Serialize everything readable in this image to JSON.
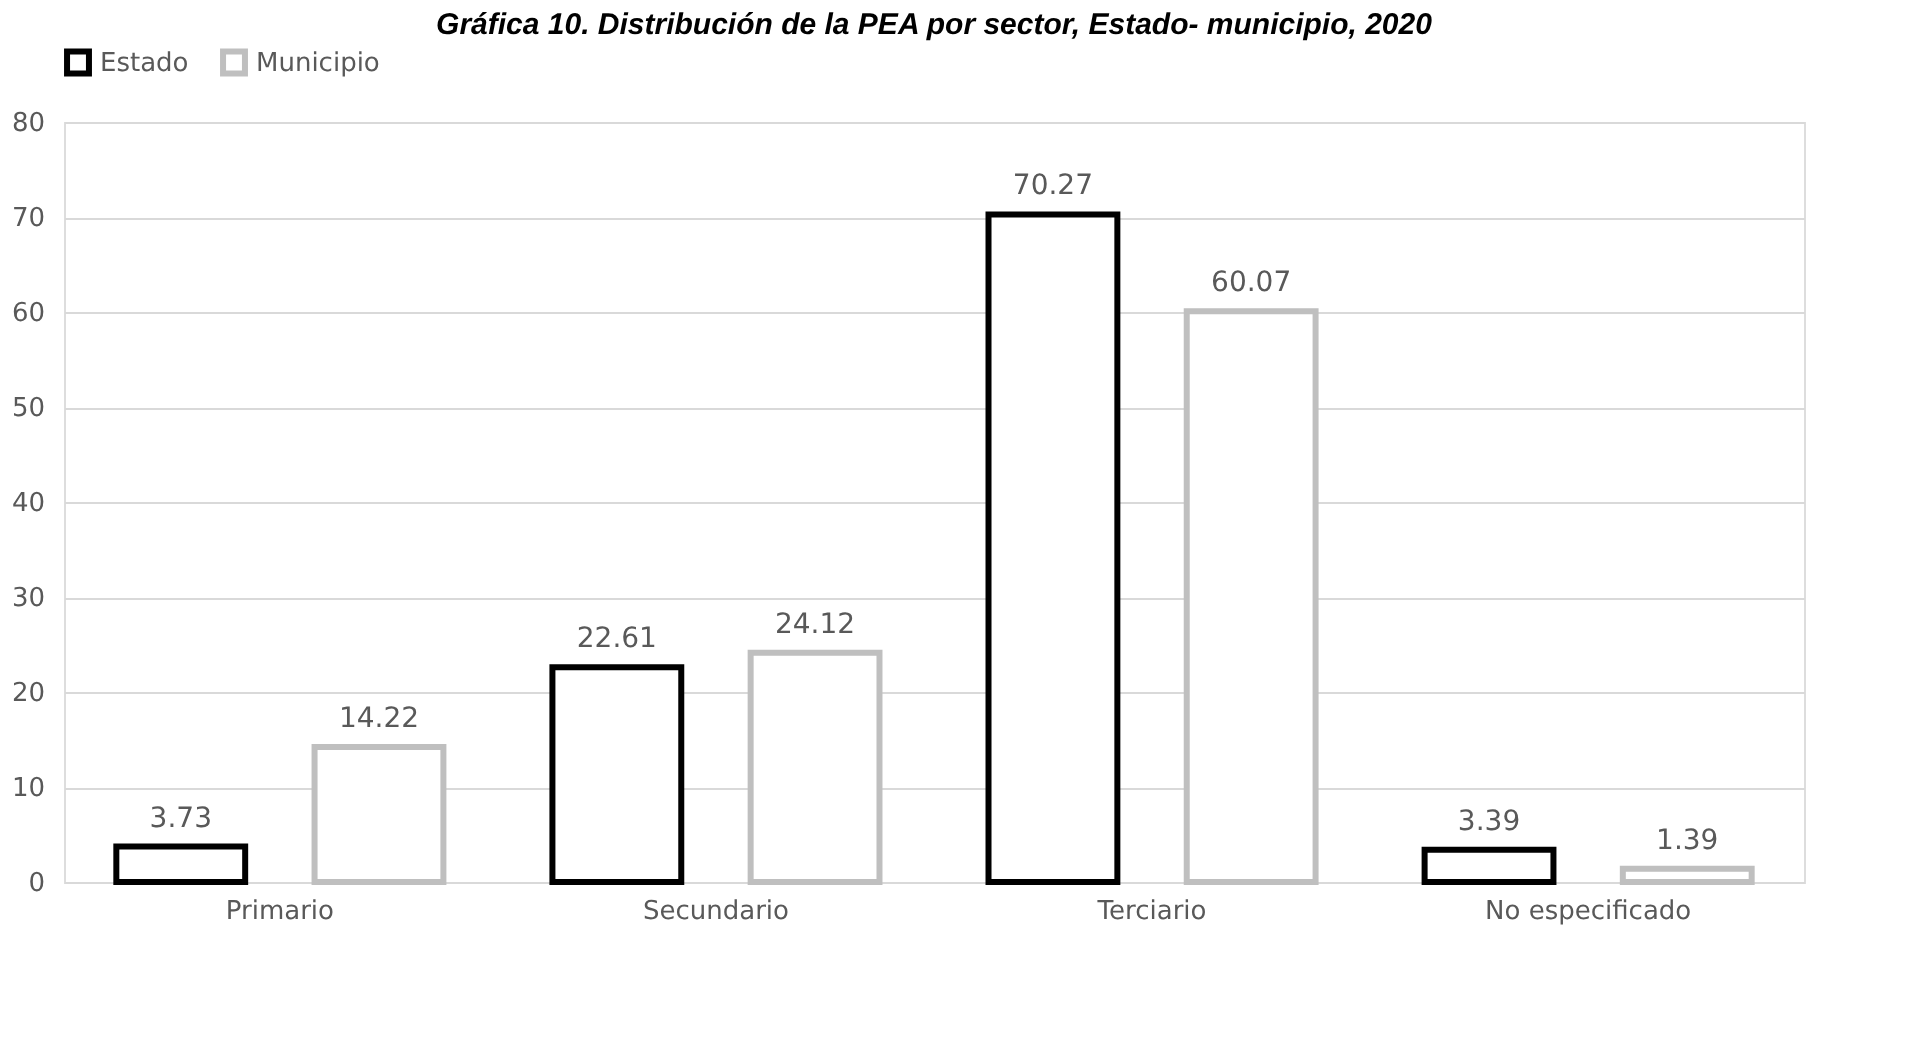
{
  "chart_data": {
    "type": "bar",
    "title": "Gráfica 10. Distribución de la PEA por sector, Estado- municipio, 2020",
    "categories": [
      "Primario",
      "Secundario",
      "Terciario",
      "No especificado"
    ],
    "series": [
      {
        "name": "Estado",
        "color": "#000000",
        "values": [
          3.73,
          22.61,
          70.27,
          3.39
        ]
      },
      {
        "name": "Municipio",
        "color": "#bfbfbf",
        "values": [
          14.22,
          24.12,
          60.07,
          1.39
        ]
      }
    ],
    "ylim": [
      0,
      80
    ],
    "yticks": [
      0,
      10,
      20,
      30,
      40,
      50,
      60,
      70,
      80
    ],
    "grid": "y",
    "legend": "top",
    "data_labels": true
  }
}
